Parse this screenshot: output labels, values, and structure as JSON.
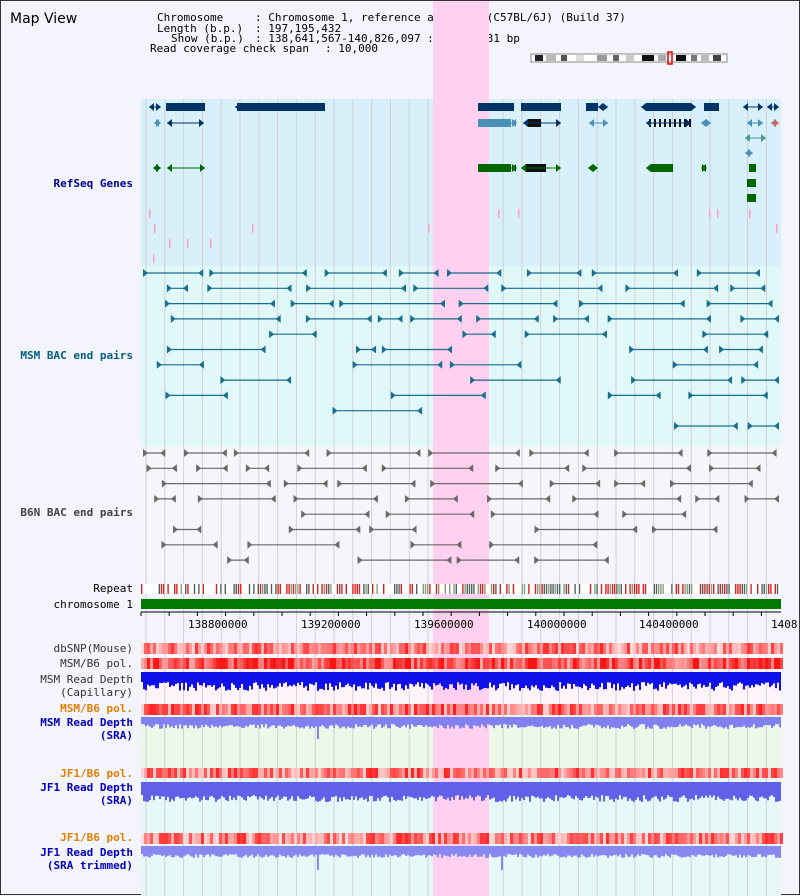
{
  "title": "Map View",
  "info": {
    "chromosome_key": "Chromosome",
    "chromosome_val": ": Chromosome 1, reference assembly (C57BL/6J) (Build 37)",
    "length_key": "Length (b.p.)",
    "length_val": ": 197,195,432",
    "show_key": "Show (b.p.)",
    "show_val": ": 138,641,567-140,826,097 : 2,184,531 bp",
    "coverage_key": "Read coverage check span",
    "coverage_val": ": 10,000"
  },
  "tracks": {
    "refseq": "RefSeq Genes",
    "msm_bac": "MSM BAC end pairs",
    "b6n_bac": "B6N BAC end pairs",
    "repeat": "Repeat",
    "chromosome": "chromosome 1",
    "dbsnp": "dbSNP(Mouse)",
    "msm_b6_pol_1": "MSM/B6 pol.",
    "msm_depth_cap_1": "MSM Read Depth",
    "msm_depth_cap_2": "(Capillary)",
    "msm_b6_pol_2": "MSM/B6 pol.",
    "msm_depth_sra_1": "MSM Read Depth",
    "msm_depth_sra_2": "(SRA)",
    "jf1_b6_pol_1": "JF1/B6 pol.",
    "jf1_depth_sra_1": "JF1 Read Depth",
    "jf1_depth_sra_2": "(SRA)",
    "jf1_b6_pol_2": "JF1/B6 pol.",
    "jf1_depth_trim_1": "JF1 Read Depth",
    "jf1_depth_trim_2": "(SRA trimmed)"
  },
  "axis_ticks": [
    "138800000",
    "139200000",
    "139600000",
    "140000000",
    "140400000",
    "1408"
  ],
  "colors": {
    "refseq_label": "#00008b",
    "msm_label": "#006080",
    "b6n_label": "#444444",
    "pol_label": "#e08000",
    "sra_label": "#0000c0",
    "highlight": "#ffd0f0",
    "gene_dark": "#003366",
    "gene_mid": "#4a90b8",
    "gene_green": "#006600"
  }
}
